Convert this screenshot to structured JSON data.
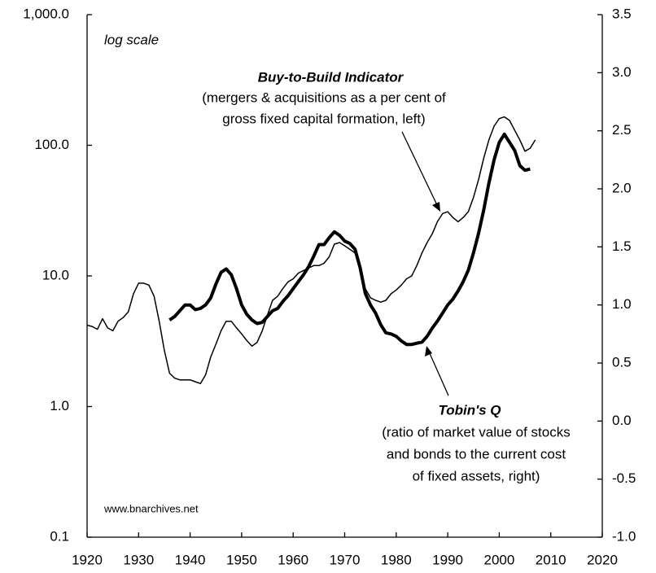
{
  "chart_data": {
    "type": "line",
    "yscale": "log",
    "xlim": [
      1920,
      2020
    ],
    "xticks": [
      1920,
      1930,
      1940,
      1950,
      1960,
      1970,
      1980,
      1990,
      2000,
      2010,
      2020
    ],
    "ylim": [
      0.1,
      1000
    ],
    "yticks": [
      {
        "value": 0.1,
        "label": "0.1"
      },
      {
        "value": 1,
        "label": "1.0"
      },
      {
        "value": 10,
        "label": "10.0"
      },
      {
        "value": 100,
        "label": "100.0"
      },
      {
        "value": 1000,
        "label": "1,000.0"
      }
    ],
    "y2lim": [
      -1.0,
      3.5
    ],
    "y2ticks": [
      {
        "value": -1,
        "label": "-1.0"
      },
      -0.5,
      {
        "value": 0,
        "label": "0.0"
      },
      0.5,
      {
        "value": 1,
        "label": "1.0"
      },
      1.5,
      {
        "value": 2,
        "label": "2.0"
      },
      2.5,
      {
        "value": 3,
        "label": "3.0"
      },
      3.5
    ],
    "annotations": {
      "scale_note": "log scale",
      "btb_title": "Buy-to-Build Indicator",
      "btb_lines": [
        "(mergers & acquisitions as a per cent of",
        "gross fixed capital formation, left)"
      ],
      "q_title": "Tobin's Q",
      "q_lines": [
        "(ratio of market value of stocks",
        "and bonds to the current cost",
        "of fixed assets, right)"
      ],
      "source": "www.bnarchives.net"
    },
    "series": [
      {
        "color": "#000000",
        "linewidth": 1.5,
        "x": [
          1920,
          1921,
          1922,
          1923,
          1924,
          1925,
          1926,
          1927,
          1928,
          1929,
          1930,
          1931,
          1932,
          1933,
          1934,
          1935,
          1936,
          1937,
          1938,
          1939,
          1940,
          1941,
          1942,
          1943,
          1944,
          1945,
          1946,
          1947,
          1948,
          1949,
          1950,
          1951,
          1952,
          1953,
          1954,
          1955,
          1956,
          1957,
          1958,
          1959,
          1960,
          1961,
          1962,
          1963,
          1964,
          1965,
          1966,
          1967,
          1968,
          1969,
          1970,
          1971,
          1972,
          1973,
          1974,
          1975,
          1976,
          1977,
          1978,
          1979,
          1980,
          1981,
          1982,
          1983,
          1984,
          1985,
          1986,
          1987,
          1988,
          1989,
          1990,
          1991,
          1992,
          1993,
          1994,
          1995,
          1996,
          1997,
          1998,
          1999,
          2000,
          2001,
          2002,
          2003,
          2004,
          2005,
          2006,
          2007
        ],
        "values": [
          4.2,
          4.1,
          3.9,
          4.7,
          4.0,
          3.8,
          4.5,
          4.8,
          5.3,
          7.3,
          8.8,
          8.8,
          8.5,
          7.0,
          4.5,
          2.7,
          1.8,
          1.65,
          1.6,
          1.6,
          1.6,
          1.55,
          1.5,
          1.75,
          2.4,
          3.0,
          3.8,
          4.5,
          4.5,
          4.0,
          3.6,
          3.2,
          2.9,
          3.1,
          3.8,
          5.0,
          6.5,
          7.0,
          8.0,
          9.0,
          9.5,
          10.5,
          11.0,
          11.5,
          12.0,
          12.0,
          12.5,
          14,
          17.5,
          18,
          17,
          16,
          15,
          11,
          8,
          6.8,
          6.5,
          6.3,
          6.5,
          7.3,
          7.8,
          8.5,
          9.5,
          10,
          12,
          15,
          18,
          21,
          26,
          30,
          31,
          28,
          26,
          28,
          31,
          40,
          55,
          80,
          110,
          140,
          160,
          165,
          155,
          130,
          110,
          90,
          95,
          110
        ]
      },
      {
        "color": "#000000",
        "linewidth": 4,
        "axis": "y2",
        "x": [
          1936,
          1937,
          1938,
          1939,
          1940,
          1941,
          1942,
          1943,
          1944,
          1945,
          1946,
          1947,
          1948,
          1949,
          1950,
          1951,
          1952,
          1953,
          1954,
          1955,
          1956,
          1957,
          1958,
          1959,
          1960,
          1961,
          1962,
          1963,
          1964,
          1965,
          1966,
          1967,
          1968,
          1969,
          1970,
          1971,
          1972,
          1973,
          1974,
          1975,
          1976,
          1977,
          1978,
          1979,
          1980,
          1981,
          1982,
          1983,
          1984,
          1985,
          1986,
          1987,
          1988,
          1989,
          1990,
          1991,
          1992,
          1993,
          1994,
          1995,
          1996,
          1997,
          1998,
          1999,
          2000,
          2001,
          2002,
          2003,
          2004,
          2005,
          2006
        ],
        "values": [
          0.87,
          0.9,
          0.95,
          1.0,
          1.0,
          0.96,
          0.97,
          1.0,
          1.06,
          1.18,
          1.28,
          1.31,
          1.26,
          1.14,
          1.0,
          0.92,
          0.87,
          0.84,
          0.85,
          0.9,
          0.95,
          0.97,
          1.03,
          1.08,
          1.14,
          1.2,
          1.26,
          1.33,
          1.42,
          1.52,
          1.52,
          1.58,
          1.63,
          1.6,
          1.55,
          1.53,
          1.48,
          1.32,
          1.1,
          1.0,
          0.93,
          0.83,
          0.76,
          0.75,
          0.73,
          0.69,
          0.66,
          0.66,
          0.67,
          0.68,
          0.73,
          0.8,
          0.86,
          0.93,
          1.0,
          1.05,
          1.12,
          1.2,
          1.3,
          1.45,
          1.62,
          1.82,
          2.05,
          2.25,
          2.4,
          2.47,
          2.4,
          2.33,
          2.2,
          2.16,
          2.17
        ]
      }
    ]
  }
}
